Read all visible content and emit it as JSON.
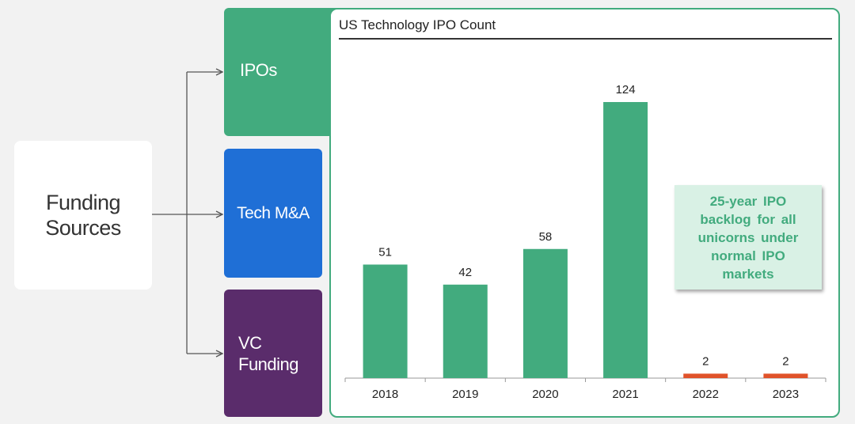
{
  "source": {
    "line1": "Funding",
    "line2": "Sources"
  },
  "categories": {
    "ipos": "IPOs",
    "ma": "Tech M&A",
    "vc_line1": "VC",
    "vc_line2": "Funding"
  },
  "callout": "25-year IPO backlog for all unicorns under normal IPO markets",
  "colors": {
    "green": "#42ab7e",
    "blue": "#1f6fd6",
    "purple": "#5a2c6b",
    "orange": "#e0522a"
  },
  "chart_data": {
    "type": "bar",
    "title": "US Technology IPO Count",
    "categories": [
      "2018",
      "2019",
      "2020",
      "2021",
      "2022",
      "2023"
    ],
    "values": [
      51,
      42,
      58,
      124,
      2,
      2
    ],
    "bar_colors": [
      "#42ab7e",
      "#42ab7e",
      "#42ab7e",
      "#42ab7e",
      "#e0522a",
      "#e0522a"
    ],
    "xlabel": "",
    "ylabel": "",
    "ylim": [
      0,
      124
    ]
  }
}
